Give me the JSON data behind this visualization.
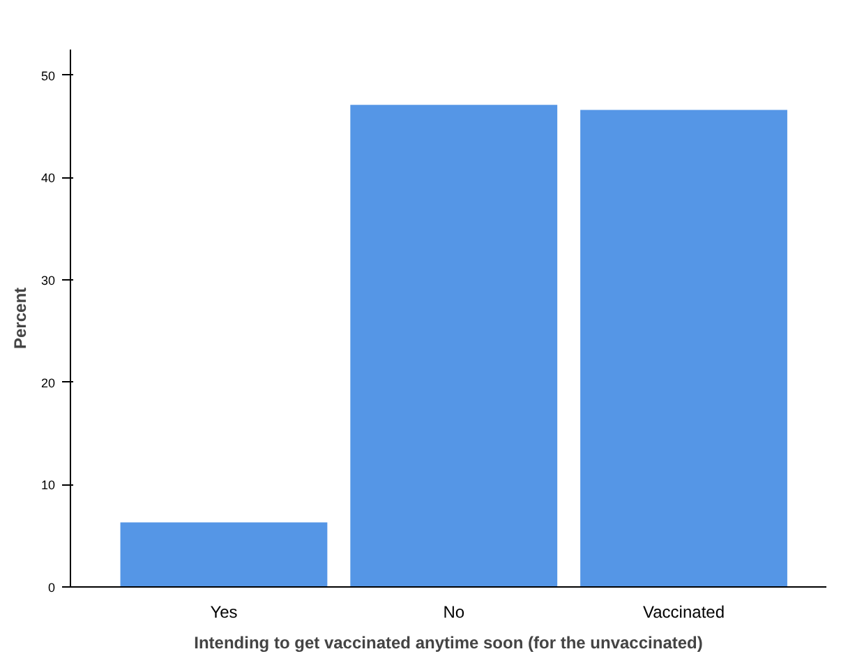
{
  "chart_data": {
    "type": "bar",
    "categories": [
      "Yes",
      "No",
      "Vaccinated"
    ],
    "values": [
      6.3,
      47.1,
      46.6
    ],
    "color": "#5596e6",
    "xlabel": "Intending to get vaccinated anytime soon (for the unvaccinated)",
    "ylabel": "Percent",
    "ylim": [
      0,
      52.5
    ],
    "yticks": [
      0,
      10,
      20,
      30,
      40,
      50
    ],
    "grid": false
  }
}
